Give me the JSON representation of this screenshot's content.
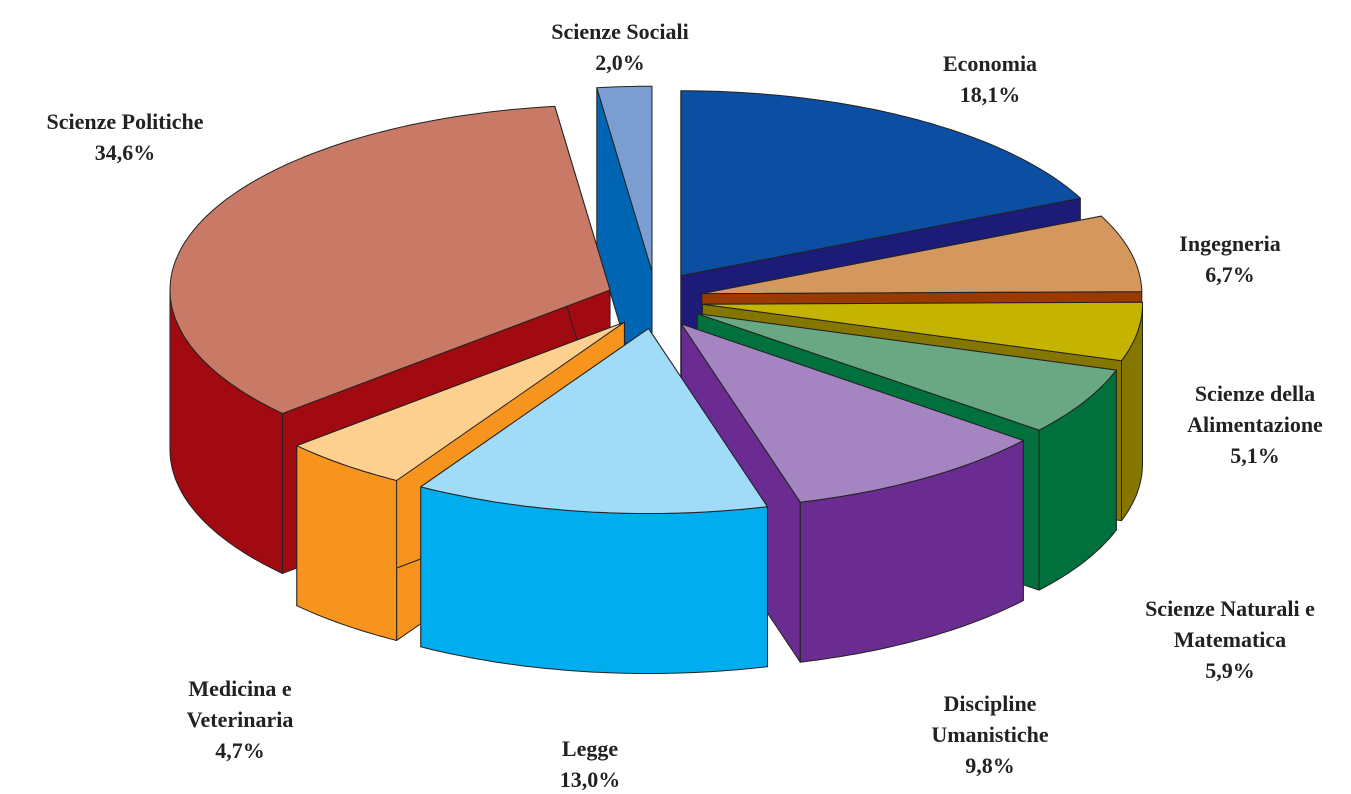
{
  "chart_data": {
    "type": "pie3d",
    "categories": [
      "Economia",
      "Ingegneria",
      "Scienze della Alimentazione",
      "Scienze Naturali e Matematica",
      "Discipline Umanistiche",
      "Legge",
      "Medicina e Veterinaria",
      "Scienze Politiche",
      "Scienze Sociali"
    ],
    "values": [
      18.1,
      6.7,
      5.1,
      5.9,
      9.8,
      13.0,
      4.7,
      34.6,
      2.0
    ],
    "value_labels": [
      "18,1%",
      "6,7%",
      "5,1%",
      "5,9%",
      "9,8%",
      "13,0%",
      "4,7%",
      "34,6%",
      "2,0%"
    ],
    "colors": [
      "#0b4ea2",
      "#d4975e",
      "#c4b400",
      "#6aa884",
      "#a585c1",
      "#a0dcf7",
      "#fdd090",
      "#c97a66",
      "#7b9fd3"
    ],
    "side_colors": [
      "#1c1c78",
      "#9a3a00",
      "#857600",
      "#00703c",
      "#6a2c91",
      "#00aeef",
      "#f7941d",
      "#a00a10",
      "#0066b3"
    ]
  }
}
